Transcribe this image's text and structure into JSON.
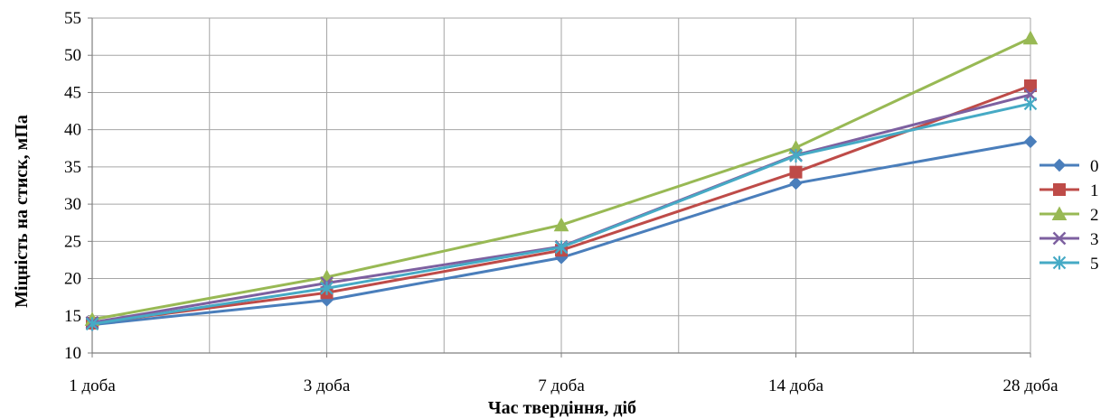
{
  "chart_data": {
    "type": "line",
    "title": "",
    "xlabel": "Час твердіння, діб",
    "ylabel": "Міцність на стиск, мПа",
    "categories": [
      "1 доба",
      "3 доба",
      "7 доба",
      "14 доба",
      "28 доба"
    ],
    "ylim": [
      10,
      55
    ],
    "ytick_step": 5,
    "grid": true,
    "legend_position": "right",
    "series": [
      {
        "name": "0",
        "color": "#4A7EBB",
        "marker": "diamond",
        "values": [
          13.8,
          17.1,
          22.8,
          32.8,
          38.4
        ]
      },
      {
        "name": "1",
        "color": "#BE4B48",
        "marker": "square",
        "values": [
          14.0,
          18.1,
          23.8,
          34.3,
          45.9
        ]
      },
      {
        "name": "2",
        "color": "#98B954",
        "marker": "triangle",
        "values": [
          14.5,
          20.2,
          27.2,
          37.6,
          52.3
        ]
      },
      {
        "name": "3",
        "color": "#7D60A0",
        "marker": "x",
        "values": [
          14.1,
          19.4,
          24.3,
          36.6,
          44.7
        ]
      },
      {
        "name": "5",
        "color": "#46AAC5",
        "marker": "star",
        "values": [
          13.9,
          18.7,
          24.2,
          36.5,
          43.5
        ]
      }
    ]
  }
}
